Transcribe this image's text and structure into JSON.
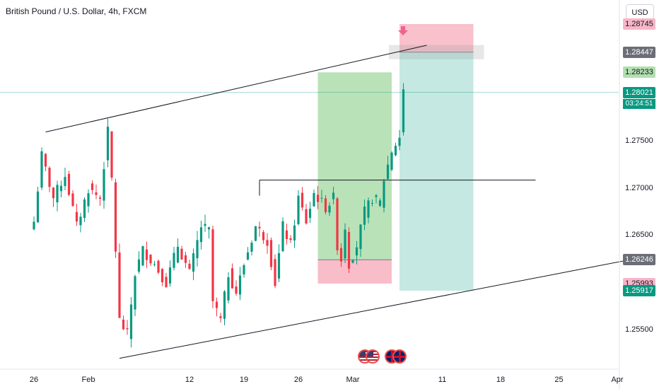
{
  "header": {
    "title": "British Pound / U.S. Dollar, 4h, FXCM",
    "currency_button": "USD"
  },
  "chart_data": {
    "type": "candlestick",
    "title": "British Pound / U.S. Dollar, 4h, FXCM",
    "xlabel": "",
    "ylabel": "",
    "ylim": [
      1.251,
      1.2885
    ],
    "y_ticks": [
      "1.27500",
      "1.27000",
      "1.26500",
      "1.25500"
    ],
    "x_ticks": [
      "26",
      "Feb",
      "12",
      "19",
      "26",
      "Mar",
      "11",
      "18",
      "25",
      "Apr"
    ],
    "x_tick_index": [
      0,
      14,
      40,
      54,
      68,
      82,
      105,
      120,
      135,
      150
    ],
    "series_anchors": [
      [
        0,
        1.2665
      ],
      [
        2,
        1.2735
      ],
      [
        5,
        1.269
      ],
      [
        8,
        1.2715
      ],
      [
        11,
        1.266
      ],
      [
        14,
        1.27
      ],
      [
        17,
        1.269
      ],
      [
        19,
        1.276
      ],
      [
        20,
        1.271
      ],
      [
        22,
        1.256
      ],
      [
        24,
        1.2545
      ],
      [
        26,
        1.261
      ],
      [
        28,
        1.2635
      ],
      [
        31,
        1.262
      ],
      [
        34,
        1.26
      ],
      [
        37,
        1.264
      ],
      [
        40,
        1.261
      ],
      [
        43,
        1.266
      ],
      [
        45,
        1.2655
      ],
      [
        46,
        1.258
      ],
      [
        48,
        1.256
      ],
      [
        50,
        1.261
      ],
      [
        52,
        1.259
      ],
      [
        54,
        1.262
      ],
      [
        57,
        1.266
      ],
      [
        60,
        1.2645
      ],
      [
        62,
        1.26
      ],
      [
        64,
        1.266
      ],
      [
        66,
        1.264
      ],
      [
        68,
        1.269
      ],
      [
        70,
        1.2665
      ],
      [
        72,
        1.2695
      ],
      [
        75,
        1.268
      ],
      [
        77,
        1.269
      ],
      [
        78,
        1.264
      ],
      [
        79,
        1.2625
      ],
      [
        80,
        1.266
      ],
      [
        81,
        1.262
      ],
      [
        83,
        1.264
      ],
      [
        85,
        1.2675
      ],
      [
        87,
        1.269
      ],
      [
        89,
        1.2685
      ],
      [
        90,
        1.271
      ],
      [
        92,
        1.274
      ],
      [
        94,
        1.2755
      ],
      [
        95,
        1.2805
      ]
    ],
    "current_price": "1.28021",
    "countdown": "03:24:51",
    "levels": [
      {
        "label": "1.28745",
        "value": 1.28745,
        "role": "stop-short"
      },
      {
        "label": "1.28447",
        "value": 1.28447,
        "role": "entry-short"
      },
      {
        "label": "1.28233",
        "value": 1.28233,
        "role": "target-long"
      },
      {
        "label": "1.26246",
        "value": 1.26246,
        "role": "entry-long"
      },
      {
        "label": "1.25993",
        "value": 1.25993,
        "role": "stop-long"
      },
      {
        "label": "1.25917",
        "value": 1.25917,
        "role": "target-short"
      }
    ],
    "trendlines": [
      {
        "name": "upper-channel",
        "points": [
          [
            3,
            1.276
          ],
          [
            101,
            1.2852
          ]
        ]
      },
      {
        "name": "lower-channel",
        "points": [
          [
            22,
            1.252
          ],
          [
            155,
            1.2626
          ]
        ]
      },
      {
        "name": "resistance",
        "points": [
          [
            58,
            1.2709
          ],
          [
            129,
            1.2709
          ]
        ]
      }
    ],
    "long_position": {
      "start": 73,
      "end": 92,
      "entry": 1.26246,
      "stop": 1.25993,
      "target": 1.28233
    },
    "short_position": {
      "start": 94,
      "end": 113,
      "entry": 1.28447,
      "stop": 1.28745,
      "target": 1.25917
    },
    "event_markers": [
      {
        "index": 85,
        "icon": "us-flag-icon"
      },
      {
        "index": 87,
        "icon": "us-flag-icon"
      },
      {
        "index": 92,
        "icon": "gb-flag-icon"
      },
      {
        "index": 94,
        "icon": "gb-flag-icon"
      }
    ],
    "colors": {
      "up": "#089981",
      "down": "#f23645",
      "long_profit": "#b2dfb0",
      "loss": "#f7b6c2",
      "short_profit": "#bfe6df",
      "axis_text": "#131722"
    },
    "grid": false
  }
}
